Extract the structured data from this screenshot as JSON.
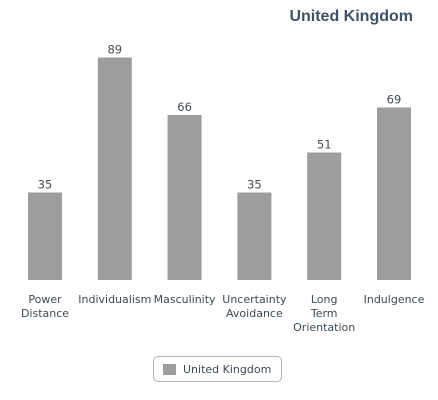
{
  "chart_data": {
    "type": "bar",
    "title": "United Kingdom",
    "categories": [
      [
        "Power",
        "Distance"
      ],
      [
        "Individualism"
      ],
      [
        "Masculinity"
      ],
      [
        "Uncertainty",
        "Avoidance"
      ],
      [
        "Long",
        "Term",
        "Orientation"
      ],
      [
        "Indulgence"
      ]
    ],
    "series": [
      {
        "name": "United Kingdom",
        "values": [
          35,
          89,
          66,
          35,
          51,
          69
        ],
        "color": "#9d9c9f"
      }
    ],
    "ylim": [
      0,
      100
    ],
    "grid": false,
    "legend_position": "bottom-center"
  }
}
